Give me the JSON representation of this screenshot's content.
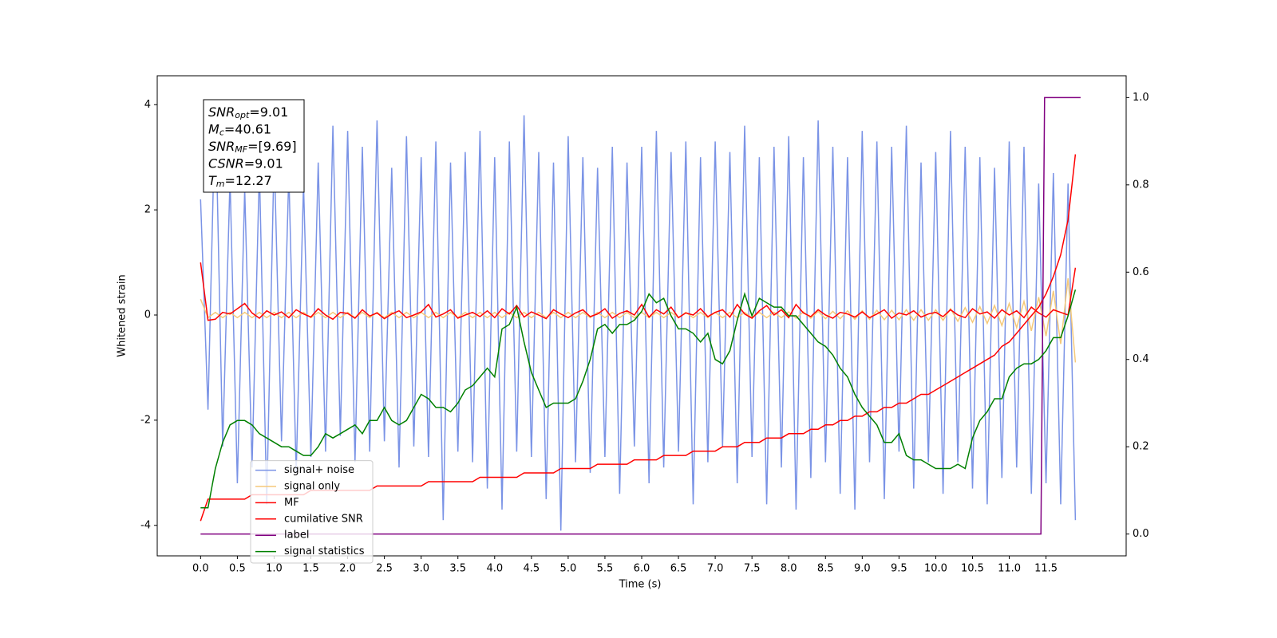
{
  "chart_data": {
    "type": "line",
    "x_label": "Time (s)",
    "y_label": "Whitened strain",
    "x": [
      0,
      0.1,
      0.2,
      0.3,
      0.4,
      0.5,
      0.6,
      0.7,
      0.8,
      0.9,
      1,
      1.1,
      1.2,
      1.3,
      1.4,
      1.5,
      1.6,
      1.7,
      1.8,
      1.9,
      2,
      2.1,
      2.2,
      2.3,
      2.4,
      2.5,
      2.6,
      2.7,
      2.8,
      2.9,
      3,
      3.1,
      3.2,
      3.3,
      3.4,
      3.5,
      3.6,
      3.7,
      3.8,
      3.9,
      4,
      4.1,
      4.2,
      4.3,
      4.4,
      4.5,
      4.6,
      4.7,
      4.8,
      4.9,
      5,
      5.1,
      5.2,
      5.3,
      5.4,
      5.5,
      5.6,
      5.7,
      5.8,
      5.9,
      6,
      6.1,
      6.2,
      6.3,
      6.4,
      6.5,
      6.6,
      6.7,
      6.8,
      6.9,
      7,
      7.1,
      7.2,
      7.3,
      7.4,
      7.5,
      7.6,
      7.7,
      7.8,
      7.9,
      8,
      8.1,
      8.2,
      8.3,
      8.4,
      8.5,
      8.6,
      8.7,
      8.8,
      8.9,
      9,
      9.1,
      9.2,
      9.3,
      9.4,
      9.5,
      9.6,
      9.7,
      9.8,
      9.9,
      10,
      10.1,
      10.2,
      10.3,
      10.4,
      10.5,
      10.6,
      10.7,
      10.8,
      10.9,
      11,
      11.1,
      11.2,
      11.3,
      11.4,
      11.5,
      11.6,
      11.7,
      11.8,
      11.9
    ],
    "xlim": [
      -0.59,
      12.59
    ],
    "ylim": [
      -4.58,
      4.55
    ],
    "y2lim": [
      -0.05,
      1.05
    ],
    "xticks": [
      {
        "value": 0,
        "label": "0.0"
      },
      0.5,
      {
        "value": 1,
        "label": "1.0"
      },
      1.5,
      {
        "value": 2,
        "label": "2.0"
      },
      2.5,
      {
        "value": 3,
        "label": "3.0"
      },
      3.5,
      {
        "value": 4,
        "label": "4.0"
      },
      4.5,
      {
        "value": 5,
        "label": "5.0"
      },
      5.5,
      {
        "value": 6,
        "label": "6.0"
      },
      6.5,
      {
        "value": 7,
        "label": "7.0"
      },
      7.5,
      {
        "value": 8,
        "label": "8.0"
      },
      8.5,
      {
        "value": 9,
        "label": "9.0"
      },
      9.5,
      {
        "value": 10,
        "label": "10.0"
      },
      10.5,
      {
        "value": 11,
        "label": "11.0"
      },
      11.5
    ],
    "yticks": [
      -4,
      -2,
      0,
      2,
      4
    ],
    "y2ticks": [
      {
        "value": 0,
        "label": "0.0"
      },
      0.2,
      0.4,
      0.6,
      0.8,
      {
        "value": 1,
        "label": "1.0"
      }
    ],
    "legend": "lower left",
    "annotation": [
      {
        "name": "SNR",
        "sub": "opt",
        "text": "=9.01"
      },
      {
        "name": "M",
        "sub": "c",
        "text": "=40.61"
      },
      {
        "name": "SNR",
        "sub": "MF",
        "text": "=[9.69]"
      },
      {
        "name": "CSNR",
        "sub": "",
        "text": "=9.01"
      },
      {
        "name": "T",
        "sub": "m",
        "text": "=12.27"
      }
    ],
    "series": [
      {
        "name": "signal+ noise",
        "color": "#7a93e6",
        "values": [
          2.2,
          -1.8,
          4.1,
          -2.5,
          2.6,
          -3.2,
          2.4,
          -2.9,
          2.8,
          -3.6,
          3.1,
          -2.4,
          2.7,
          -3.0,
          2.5,
          -2.7,
          2.9,
          -2.6,
          3.6,
          -2.3,
          3.5,
          -2.8,
          3.2,
          -2.6,
          3.7,
          -2.4,
          2.8,
          -2.9,
          3.4,
          -2.5,
          3.0,
          -2.7,
          3.3,
          -3.9,
          2.9,
          -2.6,
          3.1,
          -2.8,
          3.5,
          -3.3,
          3.0,
          -3.7,
          3.3,
          -2.6,
          3.8,
          -2.7,
          3.1,
          -3.5,
          2.9,
          -4.1,
          3.4,
          -2.8,
          3.0,
          -3.0,
          2.8,
          -2.7,
          3.2,
          -3.4,
          2.9,
          -2.5,
          3.2,
          -3.2,
          3.5,
          -2.9,
          3.1,
          -2.6,
          3.3,
          -3.6,
          3.0,
          -2.8,
          3.3,
          -2.5,
          3.1,
          -3.2,
          3.6,
          -2.7,
          3.0,
          -3.6,
          3.2,
          -2.9,
          3.4,
          -3.7,
          3.0,
          -3.1,
          3.7,
          -2.8,
          3.2,
          -3.4,
          3.0,
          -3.7,
          3.5,
          -2.8,
          3.3,
          -3.5,
          3.2,
          -2.6,
          3.6,
          -3.3,
          2.9,
          -2.8,
          3.1,
          -3.4,
          3.5,
          -2.8,
          3.2,
          -3.3,
          3.0,
          -3.6,
          2.8,
          -3.1,
          3.3,
          -2.9,
          3.2,
          -3.4,
          2.5,
          -3.2,
          2.7,
          -3.6,
          2.5,
          -3.9
        ]
      },
      {
        "name": "signal only",
        "color": "#f5c97a",
        "values": [
          0.3,
          -0.05,
          0.05,
          -0.05,
          0.05,
          -0.05,
          0.05,
          -0.05,
          0.05,
          -0.05,
          0.05,
          -0.05,
          0.05,
          -0.05,
          0.05,
          -0.05,
          0.05,
          -0.05,
          0.05,
          -0.05,
          0.05,
          -0.05,
          0.05,
          -0.05,
          0.05,
          -0.05,
          0.05,
          -0.05,
          0.05,
          -0.05,
          0.05,
          -0.05,
          0.05,
          -0.05,
          0.05,
          -0.05,
          0.05,
          -0.05,
          0.05,
          -0.05,
          0.05,
          -0.05,
          0.05,
          -0.05,
          0.05,
          -0.05,
          0.05,
          -0.05,
          0.05,
          -0.05,
          0.05,
          -0.05,
          0.05,
          -0.05,
          0.05,
          -0.05,
          0.05,
          -0.05,
          0.05,
          -0.05,
          0.05,
          -0.05,
          0.05,
          -0.05,
          0.05,
          -0.05,
          0.05,
          -0.05,
          0.05,
          -0.05,
          0.05,
          -0.05,
          0.05,
          -0.05,
          0.05,
          -0.05,
          0.05,
          -0.05,
          0.05,
          -0.05,
          0.06,
          -0.06,
          0.06,
          -0.06,
          0.07,
          -0.07,
          0.07,
          -0.07,
          0.08,
          -0.08,
          0.08,
          -0.08,
          0.09,
          -0.09,
          0.09,
          -0.09,
          0.1,
          -0.1,
          0.1,
          -0.1,
          0.1,
          -0.1,
          0.12,
          -0.12,
          0.14,
          -0.14,
          0.16,
          -0.16,
          0.18,
          -0.2,
          0.22,
          -0.24,
          0.26,
          -0.3,
          0.34,
          -0.4,
          0.46,
          -0.55,
          0.7,
          -0.9
        ]
      },
      {
        "name": "MF",
        "color": "#ff0000",
        "values": [
          1.0,
          -0.1,
          -0.08,
          0.05,
          0.02,
          0.12,
          0.22,
          0.04,
          -0.06,
          0.08,
          0.0,
          0.06,
          -0.05,
          0.1,
          0.02,
          -0.04,
          0.12,
          0.0,
          -0.08,
          0.05,
          0.03,
          -0.06,
          0.1,
          -0.02,
          0.04,
          -0.07,
          0.02,
          0.08,
          -0.05,
          0.0,
          0.06,
          0.2,
          -0.04,
          0.02,
          0.1,
          -0.06,
          0.0,
          0.05,
          -0.03,
          0.08,
          -0.05,
          0.12,
          0.02,
          0.18,
          -0.04,
          0.06,
          0.0,
          -0.07,
          0.1,
          0.02,
          -0.05,
          0.04,
          0.1,
          -0.03,
          0.02,
          0.12,
          -0.06,
          0.03,
          0.08,
          0.0,
          0.2,
          -0.04,
          0.1,
          0.02,
          0.15,
          -0.05,
          0.04,
          0.0,
          0.12,
          -0.03,
          0.05,
          0.1,
          -0.04,
          0.2,
          0.02,
          -0.06,
          0.08,
          0.18,
          0.0,
          0.1,
          -0.05,
          0.2,
          0.04,
          -0.03,
          0.1,
          0.0,
          -0.06,
          0.05,
          0.02,
          -0.04,
          0.06,
          -0.05,
          0.02,
          0.1,
          -0.06,
          0.04,
          0.0,
          0.08,
          -0.04,
          0.02,
          0.05,
          -0.03,
          0.1,
          0.0,
          -0.05,
          0.12,
          0.02,
          0.06,
          -0.06,
          0.1,
          0.0,
          0.08,
          -0.05,
          0.15,
          0.04,
          -0.04,
          0.1,
          0.05,
          0.0,
          0.9
        ]
      },
      {
        "name": "cumilative SNR",
        "color": "#ff0000",
        "axis": "y2",
        "values": [
          0.03,
          0.08,
          0.08,
          0.08,
          0.08,
          0.08,
          0.08,
          0.09,
          0.09,
          0.09,
          0.09,
          0.09,
          0.09,
          0.09,
          0.09,
          0.1,
          0.1,
          0.1,
          0.1,
          0.1,
          0.1,
          0.1,
          0.1,
          0.1,
          0.11,
          0.11,
          0.11,
          0.11,
          0.11,
          0.11,
          0.11,
          0.12,
          0.12,
          0.12,
          0.12,
          0.12,
          0.12,
          0.12,
          0.13,
          0.13,
          0.13,
          0.13,
          0.13,
          0.13,
          0.14,
          0.14,
          0.14,
          0.14,
          0.14,
          0.15,
          0.15,
          0.15,
          0.15,
          0.15,
          0.16,
          0.16,
          0.16,
          0.16,
          0.16,
          0.17,
          0.17,
          0.17,
          0.17,
          0.18,
          0.18,
          0.18,
          0.18,
          0.19,
          0.19,
          0.19,
          0.19,
          0.2,
          0.2,
          0.2,
          0.21,
          0.21,
          0.21,
          0.22,
          0.22,
          0.22,
          0.23,
          0.23,
          0.23,
          0.24,
          0.24,
          0.25,
          0.25,
          0.26,
          0.26,
          0.27,
          0.27,
          0.28,
          0.28,
          0.29,
          0.29,
          0.3,
          0.3,
          0.31,
          0.32,
          0.32,
          0.33,
          0.34,
          0.35,
          0.36,
          0.37,
          0.38,
          0.39,
          0.4,
          0.41,
          0.43,
          0.44,
          0.46,
          0.48,
          0.5,
          0.52,
          0.55,
          0.59,
          0.64,
          0.72,
          0.87
        ]
      },
      {
        "name": "label",
        "color": "#800080",
        "axis": "y2",
        "x": [
          0,
          11.43,
          11.48,
          11.97
        ],
        "values": [
          0,
          0,
          1,
          1
        ]
      },
      {
        "name": "signal statistics",
        "color": "#008000",
        "axis": "y2",
        "values": [
          0.06,
          0.06,
          0.15,
          0.21,
          0.25,
          0.26,
          0.26,
          0.25,
          0.23,
          0.22,
          0.21,
          0.2,
          0.2,
          0.19,
          0.18,
          0.18,
          0.2,
          0.23,
          0.22,
          0.23,
          0.24,
          0.25,
          0.23,
          0.26,
          0.26,
          0.29,
          0.26,
          0.25,
          0.26,
          0.29,
          0.32,
          0.31,
          0.29,
          0.29,
          0.28,
          0.3,
          0.33,
          0.34,
          0.36,
          0.38,
          0.36,
          0.47,
          0.48,
          0.52,
          0.44,
          0.37,
          0.33,
          0.29,
          0.3,
          0.3,
          0.3,
          0.31,
          0.35,
          0.4,
          0.47,
          0.48,
          0.46,
          0.48,
          0.48,
          0.49,
          0.51,
          0.55,
          0.53,
          0.54,
          0.5,
          0.47,
          0.47,
          0.46,
          0.44,
          0.46,
          0.4,
          0.39,
          0.42,
          0.49,
          0.55,
          0.5,
          0.54,
          0.53,
          0.52,
          0.52,
          0.5,
          0.5,
          0.48,
          0.46,
          0.44,
          0.43,
          0.41,
          0.38,
          0.36,
          0.32,
          0.29,
          0.27,
          0.25,
          0.21,
          0.21,
          0.23,
          0.18,
          0.17,
          0.17,
          0.16,
          0.15,
          0.15,
          0.15,
          0.16,
          0.15,
          0.22,
          0.26,
          0.28,
          0.31,
          0.31,
          0.36,
          0.38,
          0.39,
          0.39,
          0.4,
          0.42,
          0.45,
          0.45,
          0.5,
          0.56
        ]
      }
    ]
  }
}
